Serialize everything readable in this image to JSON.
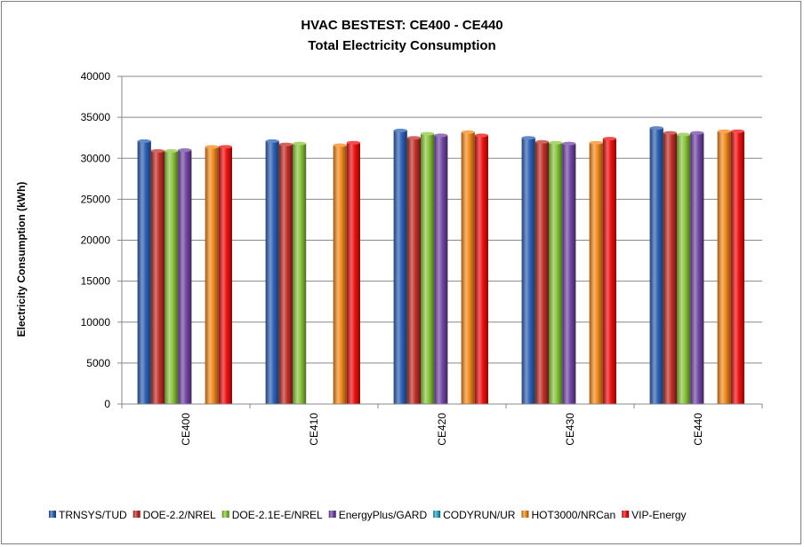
{
  "chart_data": {
    "type": "bar",
    "title": "HVAC BESTEST: CE400 - CE440",
    "subtitle": "Total Electricity Consumption",
    "xlabel": "",
    "ylabel": "Electricity Consumption (kWh)",
    "ylim": [
      0,
      40000
    ],
    "yticks": [
      "0",
      "5000",
      "10000",
      "15000",
      "20000",
      "25000",
      "30000",
      "35000",
      "40000"
    ],
    "grid": true,
    "legend_position": "bottom",
    "categories": [
      "CE400",
      "CE410",
      "CE420",
      "CE430",
      "CE440"
    ],
    "series": [
      {
        "name": "TRNSYS/TUD",
        "color": "#2e62b5",
        "values": [
          32100,
          32100,
          33400,
          32500,
          33700
        ]
      },
      {
        "name": "DOE-2.2/NREL",
        "color": "#c0302b",
        "values": [
          30900,
          31700,
          32500,
          32000,
          33100
        ]
      },
      {
        "name": "DOE-2.1E-E/NREL",
        "color": "#8cc63f",
        "values": [
          30900,
          31800,
          33000,
          31900,
          32900
        ]
      },
      {
        "name": "EnergyPlus/GARD",
        "color": "#7347a6",
        "values": [
          31000,
          null,
          32800,
          31800,
          33100
        ]
      },
      {
        "name": "CODYRUN/UR",
        "color": "#2aa7c7",
        "values": [
          null,
          null,
          null,
          null,
          null
        ]
      },
      {
        "name": "HOT3000/NRCan",
        "color": "#f38b1e",
        "values": [
          31400,
          31600,
          33200,
          31900,
          33300
        ]
      },
      {
        "name": "VIP-Energy",
        "color": "#ee1111",
        "values": [
          31400,
          31900,
          32800,
          32400,
          33300
        ]
      }
    ]
  }
}
